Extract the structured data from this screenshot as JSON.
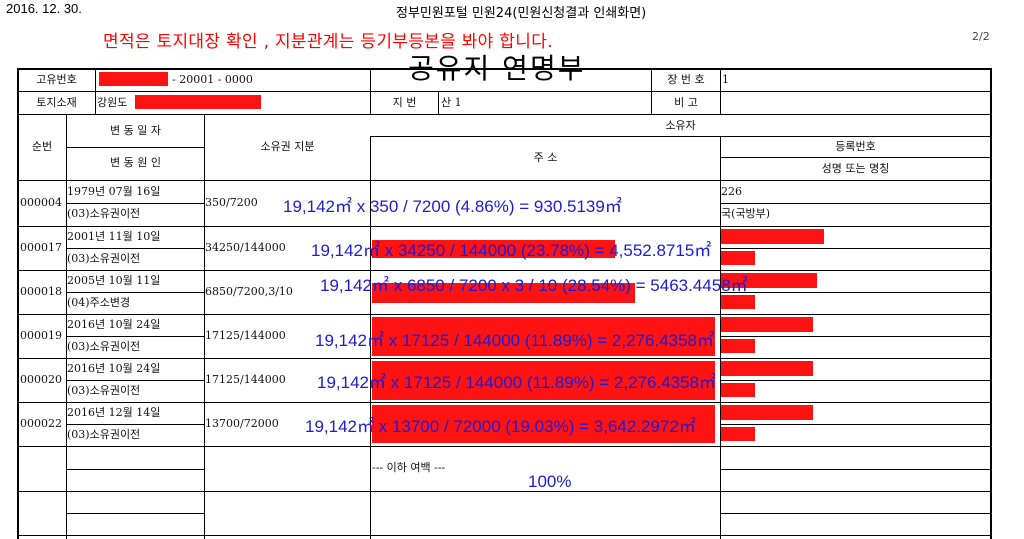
{
  "print_date": "2016. 12. 30.",
  "header_title": "정부민원포털 민원24(민원신청결과 인쇄화면)",
  "annotation_note": "면적은 토지대장 확인 , 지분관계는 등기부등본을 봐야 합니다.",
  "page_number": "2/2",
  "document_title": "공유지 연명부",
  "info": {
    "unique_no_label": "고유번호",
    "unique_no_value": "- 20001 - 0000",
    "sheet_no_label": "장 번 호",
    "sheet_no_value": "1",
    "location_label": "토지소재",
    "location_value": "강원도",
    "lot_label": "지 번",
    "lot_value": "산 1",
    "remarks_label": "비 고"
  },
  "columns": {
    "seq": "순번",
    "change_date": "변 동 일 자",
    "change_reason": "변 동 원 인",
    "share": "소유권 지분",
    "owner": "소유자",
    "address": "주 소",
    "reg_no": "등록번호",
    "name": "성명 또는 명칭"
  },
  "rows": [
    {
      "seq": "000004",
      "date": "1979년 07월 16일",
      "reason": "(03)소유권이전",
      "share": "350/7200",
      "reg_no": "226",
      "name": "국(국방부)",
      "calc": "19,142㎡ x 350 / 7200 (4.86%) = 930.5139㎡"
    },
    {
      "seq": "000017",
      "date": "2001년 11월 10일",
      "reason": "(03)소유권이전",
      "share": "34250/144000",
      "reg_no": "",
      "name": "",
      "calc": "19,142㎡ x 34250 / 144000 (23.78%) = 4,552.8715㎡"
    },
    {
      "seq": "000018",
      "date": "2005년 10월 11일",
      "reason": "(04)주소변경",
      "share": "6850/7200,3/10",
      "reg_no": "",
      "name": "",
      "calc": "19,142㎡ x 6850 / 7200 x 3 / 10 (28.54%) = 5463.4458㎡"
    },
    {
      "seq": "000019",
      "date": "2016년 10월 24일",
      "reason": "(03)소유권이전",
      "share": "17125/144000",
      "reg_no": "",
      "name": "",
      "calc": "19,142㎡ x 17125 / 144000 (11.89%) = 2,276.4358㎡"
    },
    {
      "seq": "000020",
      "date": "2016년 10월 24일",
      "reason": "(03)소유권이전",
      "share": "17125/144000",
      "reg_no": "",
      "name": "",
      "calc": "19,142㎡ x 17125 / 144000 (11.89%) = 2,276.4358㎡"
    },
    {
      "seq": "000022",
      "date": "2016년 12월 14일",
      "reason": "(03)소유권이전",
      "share": "13700/72000",
      "reg_no": "",
      "name": "",
      "calc": "19,142㎡ x 13700 / 72000 (19.03%) = 3,642.2972㎡"
    }
  ],
  "end_marker": "--- 이하 여백 ---",
  "total_percent": "100%",
  "colors": {
    "annotation": "#ff0000",
    "redaction": "#ff1212",
    "calc_text": "#1c1cd8"
  }
}
